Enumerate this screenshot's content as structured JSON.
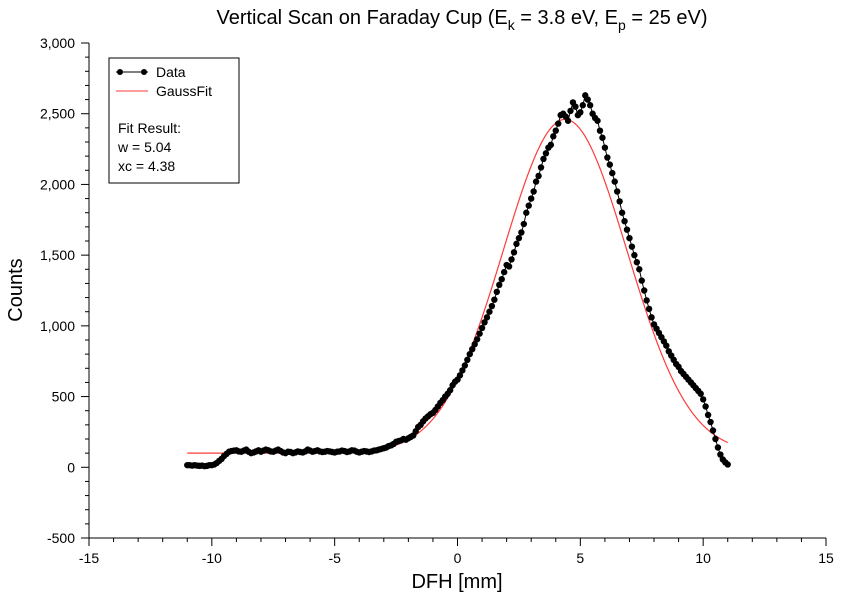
{
  "chart_data": {
    "type": "scatter",
    "title": {
      "prefix": "Vertical Scan on Faraday Cup (E",
      "sub1": "k",
      "mid": " = 3.8 eV, E",
      "sub2": "p",
      "suffix": " = 25 eV)"
    },
    "xlabel": "DFH [mm]",
    "ylabel": "Counts",
    "xlim": [
      -15,
      15
    ],
    "ylim": [
      -500,
      3000
    ],
    "x_ticks": [
      -15,
      -10,
      -5,
      0,
      5,
      10,
      15
    ],
    "x_tick_labels": [
      "-15",
      "-10",
      "-5",
      "0",
      "5",
      "10",
      "15"
    ],
    "y_ticks": [
      -500,
      0,
      500,
      1000,
      1500,
      2000,
      2500,
      3000
    ],
    "y_tick_labels": [
      "-500",
      "0",
      "500",
      "1,000",
      "1,500",
      "2,000",
      "2,500",
      "3,000"
    ],
    "grid": false,
    "legend": {
      "position": "top-left",
      "entries": [
        "Data",
        "GaussFit"
      ],
      "fit_result_label": "Fit Result:",
      "fit_w": "w = 5.04",
      "fit_xc": "xc = 4.38"
    },
    "series": [
      {
        "name": "Data",
        "color": "#000000",
        "marker": "circle",
        "points": [
          [
            -11.0,
            15
          ],
          [
            -10.9,
            15
          ],
          [
            -10.8,
            12
          ],
          [
            -10.7,
            15
          ],
          [
            -10.6,
            12
          ],
          [
            -10.5,
            10
          ],
          [
            -10.4,
            12
          ],
          [
            -10.3,
            8
          ],
          [
            -10.2,
            10
          ],
          [
            -10.1,
            15
          ],
          [
            -10.0,
            15
          ],
          [
            -9.9,
            20
          ],
          [
            -9.8,
            30
          ],
          [
            -9.7,
            45
          ],
          [
            -9.6,
            60
          ],
          [
            -9.5,
            80
          ],
          [
            -9.4,
            95
          ],
          [
            -9.3,
            110
          ],
          [
            -9.2,
            115
          ],
          [
            -9.1,
            118
          ],
          [
            -9.0,
            120
          ],
          [
            -8.9,
            112
          ],
          [
            -8.8,
            110
          ],
          [
            -8.7,
            118
          ],
          [
            -8.6,
            125
          ],
          [
            -8.5,
            110
          ],
          [
            -8.4,
            100
          ],
          [
            -8.3,
            105
          ],
          [
            -8.2,
            112
          ],
          [
            -8.1,
            120
          ],
          [
            -8.0,
            110
          ],
          [
            -7.9,
            118
          ],
          [
            -7.8,
            125
          ],
          [
            -7.7,
            120
          ],
          [
            -7.6,
            112
          ],
          [
            -7.5,
            110
          ],
          [
            -7.4,
            118
          ],
          [
            -7.3,
            125
          ],
          [
            -7.2,
            115
          ],
          [
            -7.1,
            105
          ],
          [
            -7.0,
            100
          ],
          [
            -6.9,
            110
          ],
          [
            -6.8,
            108
          ],
          [
            -6.7,
            100
          ],
          [
            -6.6,
            105
          ],
          [
            -6.5,
            112
          ],
          [
            -6.4,
            108
          ],
          [
            -6.3,
            105
          ],
          [
            -6.2,
            112
          ],
          [
            -6.1,
            125
          ],
          [
            -6.0,
            118
          ],
          [
            -5.9,
            110
          ],
          [
            -5.8,
            115
          ],
          [
            -5.7,
            120
          ],
          [
            -5.6,
            112
          ],
          [
            -5.5,
            108
          ],
          [
            -5.4,
            110
          ],
          [
            -5.3,
            115
          ],
          [
            -5.2,
            112
          ],
          [
            -5.1,
            108
          ],
          [
            -5.0,
            105
          ],
          [
            -4.9,
            110
          ],
          [
            -4.8,
            112
          ],
          [
            -4.7,
            118
          ],
          [
            -4.6,
            115
          ],
          [
            -4.5,
            108
          ],
          [
            -4.4,
            112
          ],
          [
            -4.3,
            120
          ],
          [
            -4.2,
            118
          ],
          [
            -4.1,
            110
          ],
          [
            -4.0,
            105
          ],
          [
            -3.9,
            110
          ],
          [
            -3.8,
            115
          ],
          [
            -3.7,
            112
          ],
          [
            -3.6,
            108
          ],
          [
            -3.5,
            112
          ],
          [
            -3.4,
            118
          ],
          [
            -3.3,
            120
          ],
          [
            -3.2,
            125
          ],
          [
            -3.1,
            130
          ],
          [
            -3.0,
            135
          ],
          [
            -2.9,
            140
          ],
          [
            -2.8,
            150
          ],
          [
            -2.7,
            155
          ],
          [
            -2.6,
            165
          ],
          [
            -2.5,
            180
          ],
          [
            -2.4,
            185
          ],
          [
            -2.3,
            190
          ],
          [
            -2.2,
            200
          ],
          [
            -2.1,
            195
          ],
          [
            -2.0,
            205
          ],
          [
            -1.9,
            215
          ],
          [
            -1.8,
            225
          ],
          [
            -1.7,
            255
          ],
          [
            -1.6,
            285
          ],
          [
            -1.5,
            300
          ],
          [
            -1.4,
            325
          ],
          [
            -1.3,
            345
          ],
          [
            -1.2,
            360
          ],
          [
            -1.1,
            375
          ],
          [
            -1.0,
            385
          ],
          [
            -0.9,
            405
          ],
          [
            -0.8,
            430
          ],
          [
            -0.7,
            455
          ],
          [
            -0.6,
            475
          ],
          [
            -0.5,
            500
          ],
          [
            -0.4,
            520
          ],
          [
            -0.3,
            545
          ],
          [
            -0.2,
            580
          ],
          [
            -0.1,
            605
          ],
          [
            0.0,
            620
          ],
          [
            0.1,
            650
          ],
          [
            0.2,
            685
          ],
          [
            0.3,
            720
          ],
          [
            0.4,
            760
          ],
          [
            0.5,
            800
          ],
          [
            0.6,
            835
          ],
          [
            0.7,
            870
          ],
          [
            0.8,
            905
          ],
          [
            0.9,
            945
          ],
          [
            1.0,
            985
          ],
          [
            1.1,
            1025
          ],
          [
            1.2,
            1060
          ],
          [
            1.3,
            1100
          ],
          [
            1.4,
            1140
          ],
          [
            1.5,
            1185
          ],
          [
            1.6,
            1240
          ],
          [
            1.7,
            1290
          ],
          [
            1.8,
            1330
          ],
          [
            1.9,
            1380
          ],
          [
            2.0,
            1430
          ],
          [
            2.1,
            1420
          ],
          [
            2.2,
            1470
          ],
          [
            2.3,
            1520
          ],
          [
            2.4,
            1580
          ],
          [
            2.5,
            1620
          ],
          [
            2.6,
            1660
          ],
          [
            2.7,
            1720
          ],
          [
            2.8,
            1800
          ],
          [
            2.9,
            1850
          ],
          [
            3.0,
            1900
          ],
          [
            3.1,
            1950
          ],
          [
            3.2,
            2020
          ],
          [
            3.3,
            2060
          ],
          [
            3.4,
            2120
          ],
          [
            3.5,
            2180
          ],
          [
            3.6,
            2220
          ],
          [
            3.7,
            2260
          ],
          [
            3.8,
            2280
          ],
          [
            3.9,
            2340
          ],
          [
            4.0,
            2380
          ],
          [
            4.1,
            2430
          ],
          [
            4.2,
            2490
          ],
          [
            4.3,
            2500
          ],
          [
            4.4,
            2480
          ],
          [
            4.5,
            2450
          ],
          [
            4.6,
            2520
          ],
          [
            4.7,
            2580
          ],
          [
            4.8,
            2550
          ],
          [
            4.9,
            2490
          ],
          [
            5.0,
            2510
          ],
          [
            5.1,
            2560
          ],
          [
            5.2,
            2630
          ],
          [
            5.3,
            2600
          ],
          [
            5.4,
            2560
          ],
          [
            5.5,
            2500
          ],
          [
            5.6,
            2470
          ],
          [
            5.7,
            2450
          ],
          [
            5.8,
            2380
          ],
          [
            5.9,
            2330
          ],
          [
            6.0,
            2260
          ],
          [
            6.1,
            2190
          ],
          [
            6.2,
            2140
          ],
          [
            6.3,
            2080
          ],
          [
            6.4,
            2020
          ],
          [
            6.5,
            1950
          ],
          [
            6.6,
            1880
          ],
          [
            6.7,
            1800
          ],
          [
            6.8,
            1740
          ],
          [
            6.9,
            1680
          ],
          [
            7.0,
            1620
          ],
          [
            7.1,
            1560
          ],
          [
            7.2,
            1500
          ],
          [
            7.3,
            1450
          ],
          [
            7.4,
            1400
          ],
          [
            7.5,
            1320
          ],
          [
            7.6,
            1250
          ],
          [
            7.7,
            1180
          ],
          [
            7.8,
            1120
          ],
          [
            7.9,
            1060
          ],
          [
            8.0,
            1010
          ],
          [
            8.1,
            980
          ],
          [
            8.2,
            950
          ],
          [
            8.3,
            920
          ],
          [
            8.4,
            890
          ],
          [
            8.5,
            860
          ],
          [
            8.6,
            820
          ],
          [
            8.7,
            790
          ],
          [
            8.8,
            760
          ],
          [
            8.9,
            730
          ],
          [
            9.0,
            710
          ],
          [
            9.1,
            680
          ],
          [
            9.2,
            660
          ],
          [
            9.3,
            640
          ],
          [
            9.4,
            620
          ],
          [
            9.5,
            600
          ],
          [
            9.6,
            580
          ],
          [
            9.7,
            560
          ],
          [
            9.8,
            540
          ],
          [
            9.9,
            520
          ],
          [
            10.0,
            480
          ],
          [
            10.1,
            430
          ],
          [
            10.2,
            370
          ],
          [
            10.3,
            320
          ],
          [
            10.4,
            260
          ],
          [
            10.5,
            200
          ],
          [
            10.6,
            140
          ],
          [
            10.7,
            90
          ],
          [
            10.8,
            55
          ],
          [
            10.9,
            35
          ],
          [
            11.0,
            20
          ]
        ]
      },
      {
        "name": "GaussFit",
        "color": "#ff3b3b",
        "marker": "none",
        "fit": {
          "y0": 100,
          "xc": 4.38,
          "w": 5.04,
          "A_plus_y0": 2460,
          "x_range": [
            -11,
            11
          ]
        }
      }
    ]
  }
}
